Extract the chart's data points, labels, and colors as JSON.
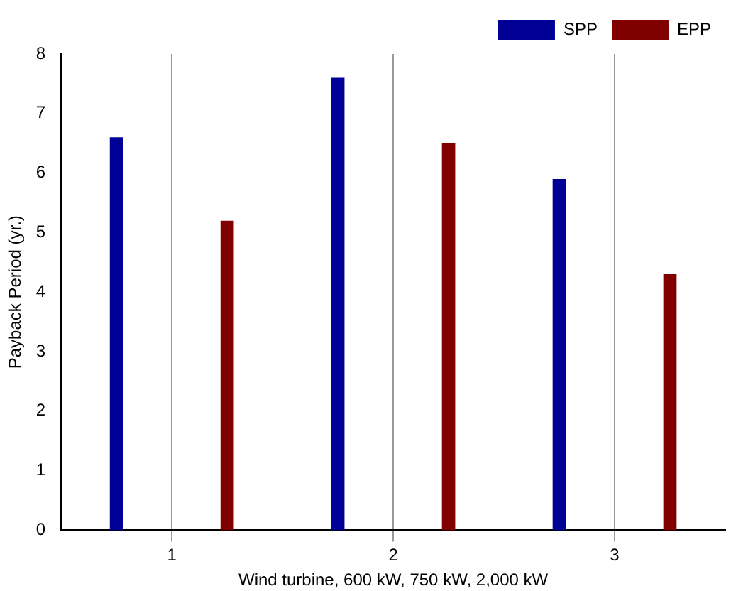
{
  "chart_data": {
    "type": "bar",
    "xlabel": "Wind turbine, 600 kW, 750 kW, 2,000 kW",
    "ylabel": "Payback Period (yr.)",
    "categories": [
      "1",
      "2",
      "3"
    ],
    "series": [
      {
        "name": "SPP",
        "color": "#000096",
        "values": [
          6.6,
          7.6,
          5.9
        ]
      },
      {
        "name": "EPP",
        "color": "#800000",
        "values": [
          5.2,
          6.5,
          4.3
        ]
      }
    ],
    "ylim": [
      0,
      8
    ],
    "yticks": [
      0,
      1,
      2,
      3,
      4,
      5,
      6,
      7,
      8
    ],
    "grid": "x",
    "legend": "top right"
  }
}
